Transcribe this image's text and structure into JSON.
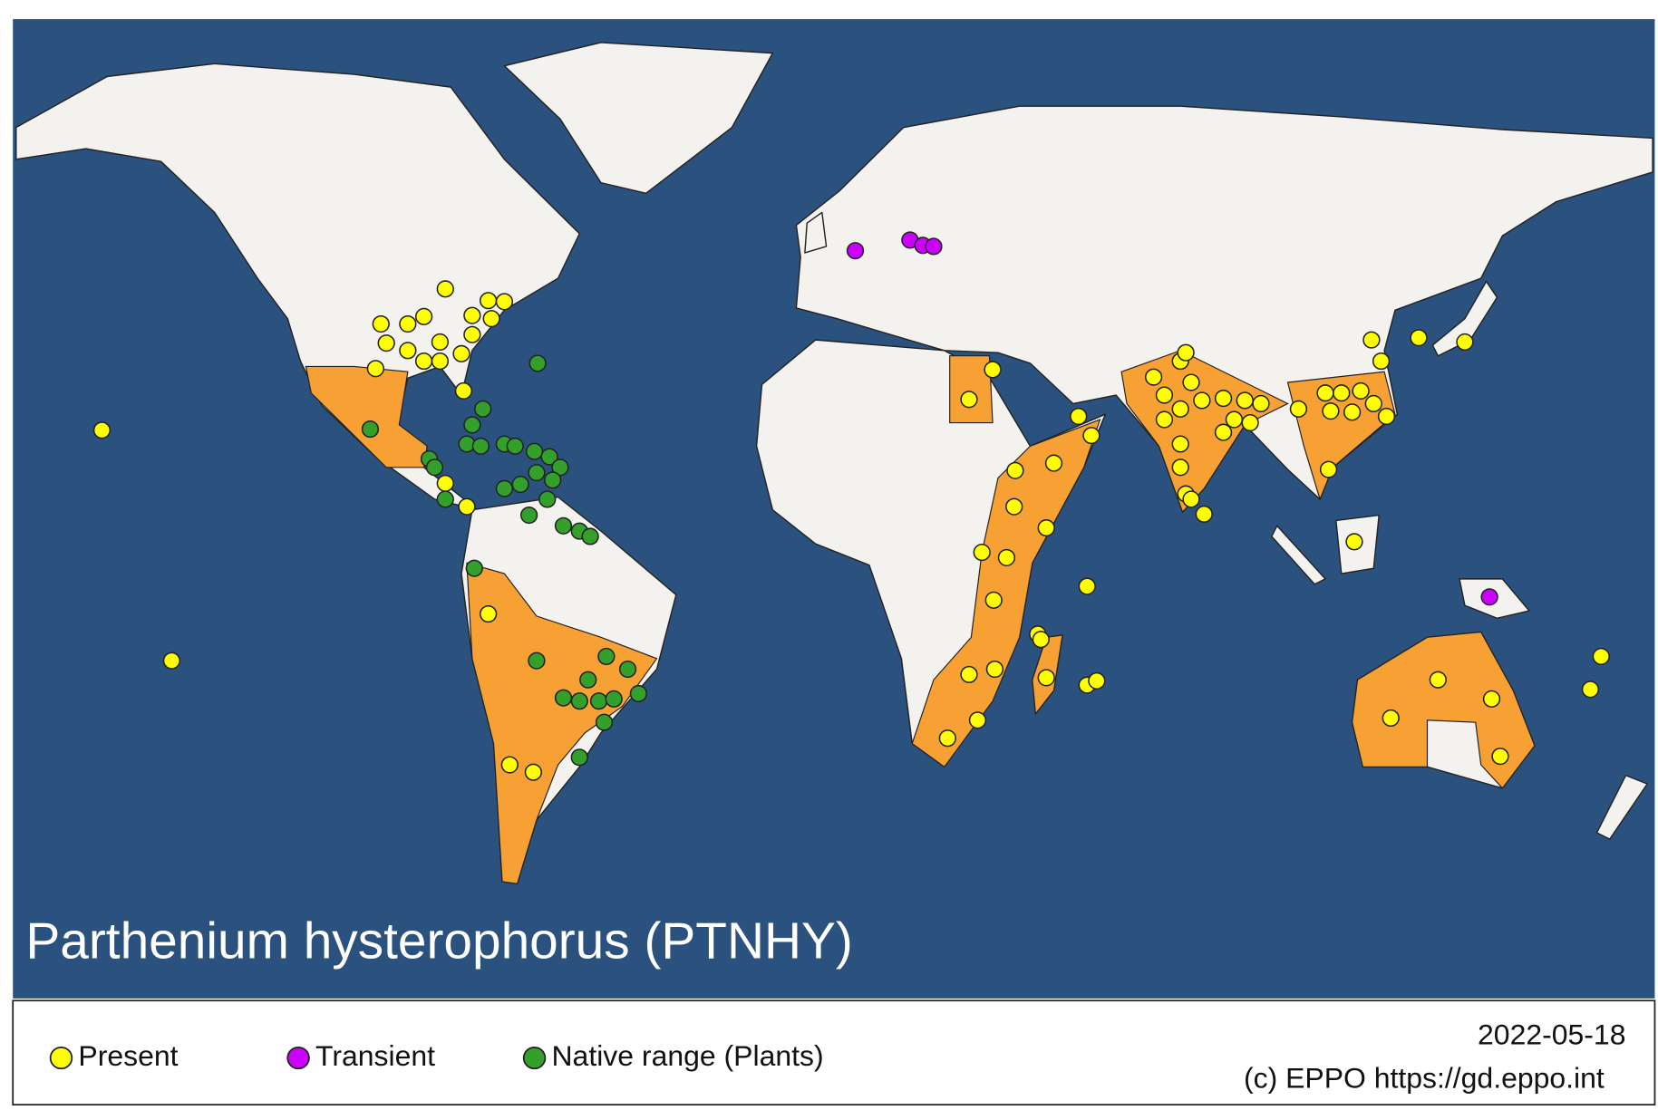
{
  "title": "Parthenium hysterophorus (PTNHY)",
  "legend": [
    {
      "label": "Present",
      "color": "#ffff00"
    },
    {
      "label": "Transient",
      "color": "#cc00ff"
    },
    {
      "label": "Native range (Plants)",
      "color": "#33a02c"
    }
  ],
  "date": "2022-05-18",
  "copyright": "(c) EPPO https://gd.eppo.int"
}
